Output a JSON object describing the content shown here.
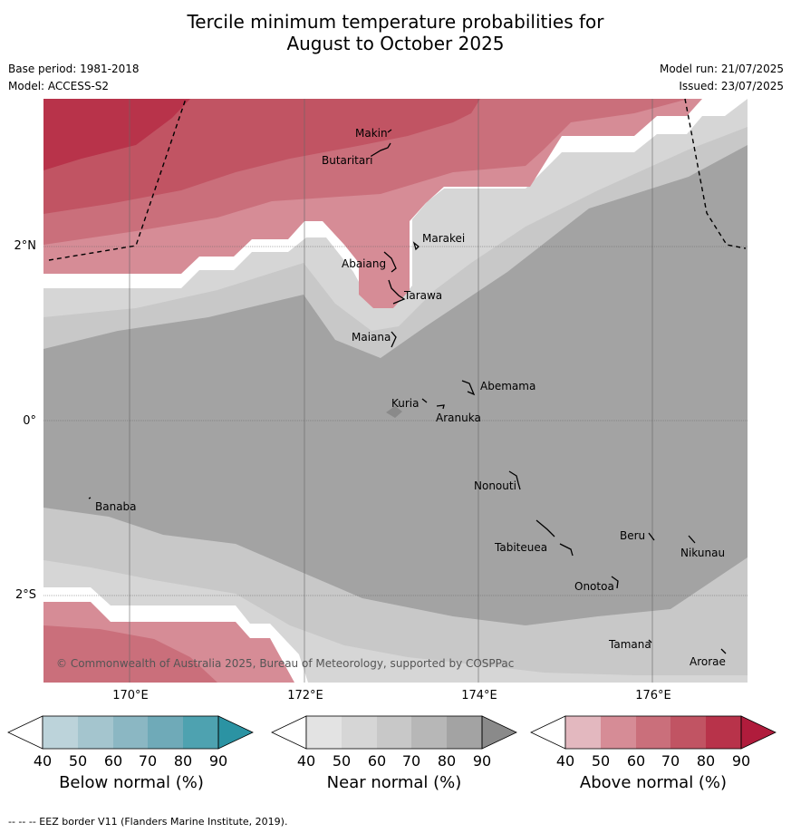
{
  "title_line1": "Tercile minimum temperature probabilities for",
  "title_line2": "August to October 2025",
  "meta": {
    "base_period": "Base period: 1981-2018",
    "model": "Model: ACCESS-S2",
    "model_run": "Model run: 21/07/2025",
    "issued": "Issued: 23/07/2025"
  },
  "axes": {
    "lon_labels": [
      "170°E",
      "172°E",
      "174°E",
      "176°E"
    ],
    "lat_labels": [
      "2°N",
      "0°",
      "2°S"
    ]
  },
  "places": {
    "makin": "Makin",
    "butaritari": "Butaritari",
    "marakei": "Marakei",
    "abaiang": "Abaiang",
    "tarawa": "Tarawa",
    "maiana": "Maiana",
    "abemama": "Abemama",
    "kuria": "Kuria",
    "aranuka": "Aranuka",
    "nonouti": "Nonouti",
    "banaba": "Banaba",
    "beru": "Beru",
    "nikunau": "Nikunau",
    "tabiteuea": "Tabiteuea",
    "onotoa": "Onotoa",
    "tamana": "Tamana",
    "arorae": "Arorae"
  },
  "copyright": "© Commonwealth of Australia 2025, Bureau of Meteorology, supported by COSPPac",
  "colorbars": {
    "ticks": [
      "40",
      "50",
      "60",
      "70",
      "80",
      "90"
    ],
    "below": {
      "label": "Below normal (%)",
      "colors": [
        "#bcd3da",
        "#a4c5ce",
        "#8bb7c3",
        "#6faab8",
        "#4ea2b0",
        "#2b93a3"
      ]
    },
    "near": {
      "label": "Near normal (%)",
      "colors": [
        "#e3e3e3",
        "#d6d6d6",
        "#c8c8c8",
        "#b7b7b7",
        "#a3a3a3",
        "#8a8a8a"
      ]
    },
    "above": {
      "label": "Above normal (%)",
      "colors": [
        "#e3b8bf",
        "#d68c96",
        "#ca6f7b",
        "#c15463",
        "#b8334a",
        "#b01c3c"
      ]
    }
  },
  "footnote": "--  --  -- EEZ border V11 (Flanders Marine Institute, 2019)."
}
